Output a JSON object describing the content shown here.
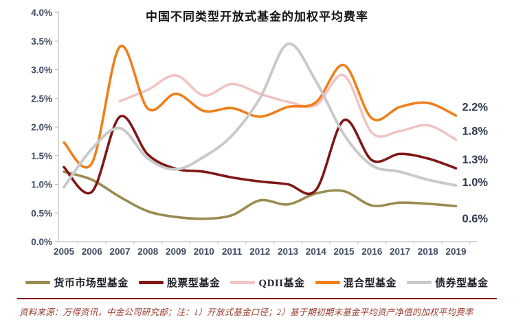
{
  "chart_data": {
    "type": "line",
    "title": "中国不同类型开放式基金的加权平均费率",
    "x": [
      2005,
      2006,
      2007,
      2008,
      2009,
      2010,
      2011,
      2012,
      2013,
      2014,
      2015,
      2016,
      2017,
      2018,
      2019
    ],
    "ylim": [
      0,
      4
    ],
    "ytick_step": 0.5,
    "ytick_labels": [
      "0.0%",
      "0.5%",
      "1.0%",
      "1.5%",
      "2.0%",
      "2.5%",
      "3.0%",
      "3.5%",
      "4.0%"
    ],
    "unit": "percent",
    "grid": false,
    "legend_position": "bottom",
    "smoothed_lines": true,
    "series": [
      {
        "name": "货币市场型基金",
        "color": "#998C4F",
        "values": [
          1.22,
          1.08,
          0.78,
          0.53,
          0.43,
          0.4,
          0.46,
          0.72,
          0.65,
          0.84,
          0.88,
          0.63,
          0.68,
          0.66,
          0.62
        ],
        "end_label": "0.6%",
        "end_label_dy": 19
      },
      {
        "name": "股票型基金",
        "color": "#7E1715",
        "values": [
          1.3,
          0.87,
          2.18,
          1.52,
          1.27,
          1.22,
          1.12,
          1.05,
          1.0,
          0.9,
          2.12,
          1.42,
          1.53,
          1.45,
          1.28
        ],
        "end_label": "1.3%",
        "end_label_dy": -12
      },
      {
        "name": "QDII基金",
        "color": "#F1C3C2",
        "values": [
          null,
          null,
          2.45,
          2.65,
          2.9,
          2.55,
          2.75,
          2.58,
          2.44,
          2.38,
          2.9,
          1.9,
          1.93,
          2.03,
          1.78
        ],
        "end_label": "1.8%",
        "end_label_dy": -12
      },
      {
        "name": "混合型基金",
        "color": "#EF7F1A",
        "values": [
          1.73,
          1.37,
          3.4,
          2.32,
          2.58,
          2.28,
          2.33,
          2.18,
          2.35,
          2.43,
          3.08,
          2.15,
          2.35,
          2.42,
          2.2
        ],
        "end_label": "2.2%",
        "end_label_dy": -12
      },
      {
        "name": "债券型基金",
        "color": "#C9C9C9",
        "values": [
          0.95,
          1.62,
          1.98,
          1.45,
          1.26,
          1.48,
          1.85,
          2.5,
          3.45,
          2.8,
          1.87,
          1.33,
          1.22,
          1.08,
          0.98
        ],
        "end_label": "1.0%",
        "end_label_dy": -4
      }
    ]
  },
  "footnote": {
    "text": "资料来源：万得资讯，中金公司研究部；注：1）开放式基金口径；2）基于期初期末基金平均资产净值的加权平均费率"
  }
}
